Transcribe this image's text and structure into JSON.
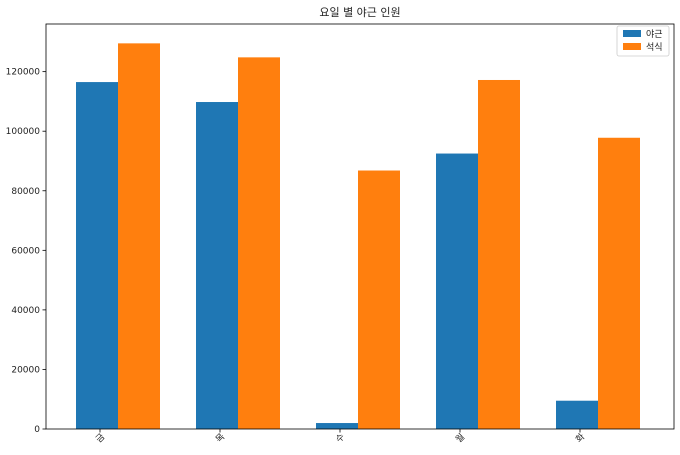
{
  "chart_data": {
    "type": "bar",
    "title": "요일 별 야근 인원",
    "xlabel": "",
    "ylabel": "",
    "categories": [
      "금",
      "목",
      "수",
      "월",
      "화"
    ],
    "series": [
      {
        "name": "야근",
        "values": [
          116500,
          109800,
          2000,
          92500,
          9500
        ],
        "color": "#1f77b4"
      },
      {
        "name": "석식",
        "values": [
          129500,
          124800,
          86800,
          117200,
          97800
        ],
        "color": "#ff7f0e"
      }
    ],
    "ylim": [
      0,
      136000
    ],
    "yticks": [
      0,
      20000,
      40000,
      60000,
      80000,
      100000,
      120000
    ],
    "grid": false,
    "legend_position": "top-right"
  }
}
